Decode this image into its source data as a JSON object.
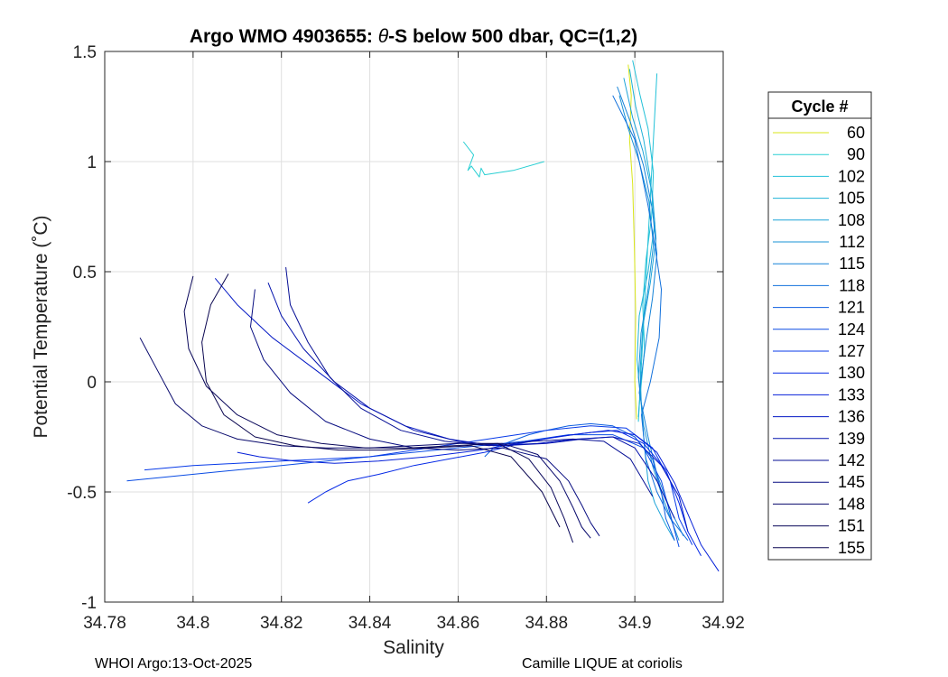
{
  "chart_data": {
    "type": "line",
    "title": "Argo WMO 4903655: θ-S below 500 dbar,  QC=(1,2)",
    "title_parts": {
      "before": "Argo WMO 4903655: ",
      "theta": "θ",
      "after": "-S below 500 dbar,  QC=(1,2)"
    },
    "xlabel": "Salinity",
    "ylabel": "Potential Temperature (˚C)",
    "xlim": [
      34.78,
      34.92
    ],
    "ylim": [
      -1,
      1.5
    ],
    "x_ticks": [
      34.78,
      34.8,
      34.82,
      34.84,
      34.86,
      34.88,
      34.9,
      34.92
    ],
    "x_tick_labels": [
      "34.78",
      "34.8",
      "34.82",
      "34.84",
      "34.86",
      "34.88",
      "34.9",
      "34.92"
    ],
    "y_ticks": [
      -1,
      -0.5,
      0,
      0.5,
      1,
      1.5
    ],
    "y_tick_labels": [
      "-1",
      "-0.5",
      "0",
      "0.5",
      "1",
      "1.5"
    ],
    "grid": true,
    "legend": {
      "title": "Cycle #",
      "placement": "outside-right",
      "entries": [
        {
          "name": "60",
          "color": "#d9e61a"
        },
        {
          "name": "90",
          "color": "#29cfd3"
        },
        {
          "name": "102",
          "color": "#22c1d8"
        },
        {
          "name": "105",
          "color": "#1fb2d8"
        },
        {
          "name": "108",
          "color": "#1ca3d8"
        },
        {
          "name": "112",
          "color": "#1893d6"
        },
        {
          "name": "115",
          "color": "#1582d8"
        },
        {
          "name": "118",
          "color": "#1170dc"
        },
        {
          "name": "121",
          "color": "#0d5ee0"
        },
        {
          "name": "124",
          "color": "#0a4ce4"
        },
        {
          "name": "127",
          "color": "#073ae8"
        },
        {
          "name": "130",
          "color": "#0529e6"
        },
        {
          "name": "133",
          "color": "#041fd8"
        },
        {
          "name": "136",
          "color": "#0418c4"
        },
        {
          "name": "139",
          "color": "#0513ad"
        },
        {
          "name": "142",
          "color": "#060f95"
        },
        {
          "name": "145",
          "color": "#070c80"
        },
        {
          "name": "148",
          "color": "#08096c"
        },
        {
          "name": "151",
          "color": "#09075a"
        },
        {
          "name": "155",
          "color": "#0a0650"
        }
      ]
    },
    "series": [
      {
        "name": "60",
        "color": "#d9e61a",
        "x": [
          34.8985,
          34.8992,
          34.8988,
          34.8995,
          34.8999,
          34.9002,
          34.9,
          34.9004
        ],
        "y": [
          1.44,
          1.3,
          1.1,
          0.9,
          0.6,
          0.3,
          0.0,
          -0.17
        ]
      },
      {
        "name": "90",
        "color": "#29cfd3",
        "x": [
          34.8612,
          34.8635,
          34.8622,
          34.863,
          34.8648,
          34.8652,
          34.866,
          34.8725,
          34.8795
        ],
        "y": [
          1.09,
          1.03,
          0.96,
          0.98,
          0.93,
          0.97,
          0.94,
          0.96,
          1.0
        ]
      },
      {
        "name": "102",
        "color": "#22c1d8",
        "x": [
          34.8995,
          34.9012,
          34.903,
          34.9042,
          34.9038,
          34.9025,
          34.9018,
          34.9022,
          34.9015,
          34.901,
          34.9008,
          34.905
        ],
        "y": [
          1.46,
          1.3,
          1.15,
          0.95,
          0.75,
          0.55,
          0.35,
          0.15,
          0.0,
          -0.1,
          -0.18,
          1.4
        ]
      },
      {
        "name": "105",
        "color": "#1fb2d8",
        "x": [
          34.8988,
          34.9002,
          34.902,
          34.9035,
          34.9045,
          34.903,
          34.901,
          34.9005,
          34.9012,
          34.9008
        ],
        "y": [
          1.42,
          1.25,
          1.1,
          0.92,
          0.72,
          0.5,
          0.3,
          0.1,
          -0.05,
          -0.16
        ]
      },
      {
        "name": "108",
        "color": "#1ca3d8",
        "x": [
          34.8975,
          34.8995,
          34.9018,
          34.904,
          34.9048,
          34.9035,
          34.9018,
          34.9012,
          34.9015,
          34.9022,
          34.903,
          34.9045,
          34.907,
          34.909
        ],
        "y": [
          1.38,
          1.2,
          1.05,
          0.85,
          0.65,
          0.45,
          0.25,
          0.05,
          -0.12,
          -0.3,
          -0.45,
          -0.55,
          -0.65,
          -0.72
        ]
      },
      {
        "name": "112",
        "color": "#1893d6",
        "x": [
          34.8965,
          34.8985,
          34.901,
          34.9032,
          34.9042,
          34.903,
          34.9014,
          34.9008,
          34.902,
          34.904,
          34.9062,
          34.9085,
          34.91
        ],
        "y": [
          1.3,
          1.15,
          1.0,
          0.82,
          0.62,
          0.42,
          0.22,
          0.02,
          -0.2,
          -0.38,
          -0.52,
          -0.64,
          -0.72
        ]
      },
      {
        "name": "115",
        "color": "#1582d8",
        "x": [
          34.896,
          34.899,
          34.902,
          34.904,
          34.905,
          34.904,
          34.9025,
          34.901,
          34.903,
          34.905,
          34.908,
          34.911
        ],
        "y": [
          1.34,
          1.18,
          0.98,
          0.78,
          0.58,
          0.38,
          0.18,
          -0.05,
          -0.25,
          -0.42,
          -0.58,
          -0.7
        ]
      },
      {
        "name": "118",
        "color": "#1170dc",
        "x": [
          34.895,
          34.8975,
          34.9,
          34.9015,
          34.903,
          34.9045,
          34.906,
          34.9055,
          34.9035,
          34.9015,
          34.9025,
          34.905,
          34.908,
          34.912
        ],
        "y": [
          1.3,
          1.2,
          1.1,
          0.95,
          0.8,
          0.62,
          0.42,
          0.2,
          0.0,
          -0.15,
          -0.35,
          -0.5,
          -0.62,
          -0.72
        ]
      },
      {
        "name": "121",
        "color": "#0d5ee0",
        "x": [
          34.866,
          34.868,
          34.872,
          34.876,
          34.88,
          34.885,
          34.89,
          34.895,
          34.9,
          34.904,
          34.906,
          34.907,
          34.909
        ],
        "y": [
          -0.34,
          -0.3,
          -0.27,
          -0.24,
          -0.22,
          -0.2,
          -0.19,
          -0.2,
          -0.25,
          -0.35,
          -0.5,
          -0.62,
          -0.72
        ]
      },
      {
        "name": "124",
        "color": "#0a4ce4",
        "x": [
          34.785,
          34.795,
          34.805,
          34.815,
          34.825,
          34.835,
          34.845,
          34.855,
          34.865,
          34.875,
          34.885,
          34.895,
          34.902,
          34.906,
          34.908,
          34.91
        ],
        "y": [
          -0.45,
          -0.43,
          -0.41,
          -0.39,
          -0.37,
          -0.35,
          -0.33,
          -0.31,
          -0.29,
          -0.27,
          -0.24,
          -0.24,
          -0.3,
          -0.45,
          -0.6,
          -0.75
        ]
      },
      {
        "name": "127",
        "color": "#073ae8",
        "x": [
          34.789,
          34.8,
          34.81,
          34.82,
          34.83,
          34.84,
          34.85,
          34.86,
          34.87,
          34.88,
          34.89,
          34.898,
          34.904,
          34.908,
          34.91,
          34.913
        ],
        "y": [
          -0.4,
          -0.38,
          -0.37,
          -0.36,
          -0.35,
          -0.34,
          -0.31,
          -0.28,
          -0.25,
          -0.22,
          -0.2,
          -0.21,
          -0.3,
          -0.45,
          -0.62,
          -0.74
        ]
      },
      {
        "name": "130",
        "color": "#0529e6",
        "x": [
          34.826,
          34.83,
          34.835,
          34.842,
          34.85,
          34.858,
          34.866,
          34.874,
          34.882,
          34.89,
          34.896,
          34.902,
          34.907,
          34.91,
          34.912,
          34.915
        ],
        "y": [
          -0.55,
          -0.5,
          -0.45,
          -0.42,
          -0.38,
          -0.35,
          -0.32,
          -0.28,
          -0.25,
          -0.23,
          -0.22,
          -0.28,
          -0.4,
          -0.55,
          -0.68,
          -0.79
        ]
      },
      {
        "name": "133",
        "color": "#041fd8",
        "x": [
          34.81,
          34.815,
          34.823,
          34.832,
          34.842,
          34.853,
          34.865,
          34.876,
          34.886,
          34.894,
          34.9,
          34.905,
          34.909,
          34.912,
          34.915,
          34.919
        ],
        "y": [
          -0.32,
          -0.34,
          -0.36,
          -0.37,
          -0.36,
          -0.34,
          -0.31,
          -0.27,
          -0.24,
          -0.22,
          -0.24,
          -0.32,
          -0.46,
          -0.6,
          -0.74,
          -0.86
        ]
      },
      {
        "name": "136",
        "color": "#0418c4",
        "x": [
          34.805,
          34.81,
          34.818,
          34.828,
          34.838,
          34.848,
          34.858,
          34.868,
          34.878,
          34.887,
          34.895,
          34.901,
          34.906,
          34.91,
          34.912
        ],
        "y": [
          0.47,
          0.35,
          0.2,
          0.05,
          -0.1,
          -0.2,
          -0.26,
          -0.29,
          -0.28,
          -0.26,
          -0.25,
          -0.28,
          -0.38,
          -0.52,
          -0.68
        ]
      },
      {
        "name": "139",
        "color": "#0513ad",
        "x": [
          34.817,
          34.82,
          34.825,
          34.832,
          34.84,
          34.85,
          34.86,
          34.87,
          34.88,
          34.888,
          34.895,
          34.9,
          34.905,
          34.909
        ],
        "y": [
          0.45,
          0.3,
          0.15,
          0.0,
          -0.12,
          -0.22,
          -0.27,
          -0.29,
          -0.28,
          -0.26,
          -0.25,
          -0.3,
          -0.45,
          -0.62
        ]
      },
      {
        "name": "142",
        "color": "#060f95",
        "x": [
          34.821,
          34.822,
          34.826,
          34.831,
          34.838,
          34.847,
          34.857,
          34.867,
          34.877,
          34.886,
          34.893,
          34.899,
          34.904
        ],
        "y": [
          0.52,
          0.35,
          0.18,
          0.02,
          -0.12,
          -0.22,
          -0.27,
          -0.29,
          -0.27,
          -0.26,
          -0.27,
          -0.35,
          -0.52
        ]
      },
      {
        "name": "145",
        "color": "#070c80",
        "x": [
          34.814,
          34.813,
          34.816,
          34.822,
          34.83,
          34.84,
          34.85,
          34.86,
          34.87,
          34.88,
          34.885,
          34.888,
          34.89,
          34.892
        ],
        "y": [
          0.42,
          0.25,
          0.1,
          -0.05,
          -0.18,
          -0.26,
          -0.3,
          -0.31,
          -0.3,
          -0.35,
          -0.45,
          -0.56,
          -0.64,
          -0.7
        ]
      },
      {
        "name": "148",
        "color": "#08096c",
        "x": [
          34.788,
          34.792,
          34.796,
          34.802,
          34.81,
          34.82,
          34.83,
          34.84,
          34.85,
          34.86,
          34.87,
          34.878,
          34.883,
          34.886,
          34.888,
          34.89
        ],
        "y": [
          0.2,
          0.05,
          -0.1,
          -0.2,
          -0.26,
          -0.29,
          -0.3,
          -0.3,
          -0.29,
          -0.28,
          -0.28,
          -0.33,
          -0.45,
          -0.57,
          -0.66,
          -0.71
        ]
      },
      {
        "name": "151",
        "color": "#09075a",
        "x": [
          34.8,
          34.798,
          34.799,
          34.803,
          34.81,
          34.819,
          34.829,
          34.839,
          34.849,
          34.859,
          34.869,
          34.876,
          34.881,
          34.884,
          34.886
        ],
        "y": [
          0.48,
          0.32,
          0.15,
          -0.02,
          -0.15,
          -0.24,
          -0.28,
          -0.3,
          -0.3,
          -0.29,
          -0.28,
          -0.35,
          -0.48,
          -0.62,
          -0.73
        ]
      },
      {
        "name": "155",
        "color": "#0a0650",
        "x": [
          34.808,
          34.804,
          34.802,
          34.803,
          34.807,
          34.814,
          34.823,
          34.833,
          34.843,
          34.853,
          34.863,
          34.872,
          34.879,
          34.883
        ],
        "y": [
          0.49,
          0.35,
          0.18,
          0.0,
          -0.15,
          -0.25,
          -0.29,
          -0.31,
          -0.31,
          -0.3,
          -0.29,
          -0.34,
          -0.5,
          -0.66
        ]
      }
    ]
  },
  "footer": {
    "left": "WHOI Argo:13-Oct-2025",
    "right": "Camille LIQUE at coriolis"
  }
}
